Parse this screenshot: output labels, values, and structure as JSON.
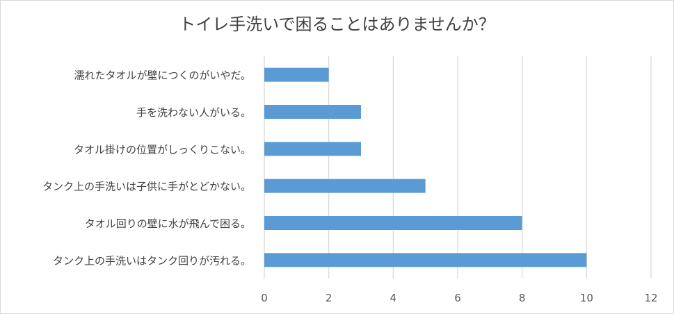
{
  "chart_data": {
    "type": "bar",
    "orientation": "horizontal",
    "title": "トイレ手洗いで困ることはありませんか？",
    "categories": [
      "濡れたタオルが壁につくのがいやだ。",
      "手を洗わない人がいる。",
      "タオル掛けの位置がしっくりこない。",
      "タンク上の手洗いは子供に手がとどかない。",
      "タオル回りの壁に水が飛んで困る。",
      "タンク上の手洗いはタンク回りが汚れる。"
    ],
    "values": [
      2,
      3,
      3,
      5,
      8,
      10
    ],
    "xlim": [
      0,
      12
    ],
    "xticks": [
      "0",
      "2",
      "4",
      "6",
      "8",
      "10",
      "12"
    ],
    "grid": true,
    "legend": "none",
    "bar_color": "#5b9bd5",
    "grid_color": "#d9d9d9"
  }
}
